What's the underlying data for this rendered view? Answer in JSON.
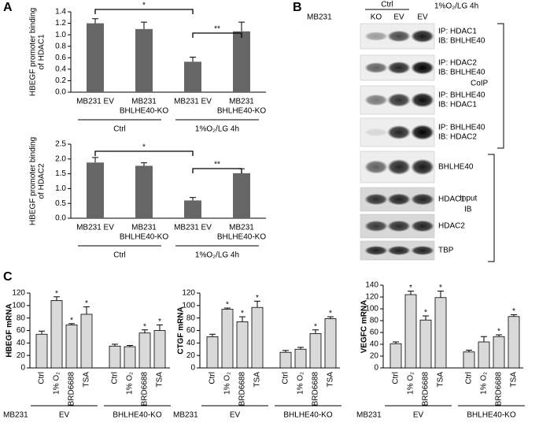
{
  "panels": [
    "A",
    "B",
    "C"
  ],
  "chart_data": [
    {
      "type": "bar",
      "ylabel": [
        "HBEGF promoter binding",
        "of HDAC1"
      ],
      "categories": [
        [
          "MB231 EV"
        ],
        [
          "MB231",
          "BHLHE40-KO"
        ],
        [
          "MB231 EV"
        ],
        [
          "MB231",
          "BHLHE40-KO"
        ]
      ],
      "values": [
        1.2,
        1.1,
        0.53,
        1.06
      ],
      "errors": [
        0.08,
        0.12,
        0.08,
        0.16
      ],
      "color": "#666666",
      "ylim": [
        0,
        1.4
      ],
      "yticks": [
        {
          "value": 0,
          "label": "0.0"
        },
        0.2,
        0.4,
        0.6,
        0.8,
        {
          "value": 1,
          "label": "1.0"
        },
        1.2,
        1.4
      ],
      "groups": [
        {
          "label": "Ctrl",
          "from": 0,
          "to": 1
        },
        {
          "label": "1%O₂/LG 4h",
          "from": 2,
          "to": 3
        }
      ],
      "brackets": [
        {
          "from": 0,
          "to": 2,
          "label": "*"
        },
        {
          "from": 2,
          "to": 3,
          "label": "**"
        }
      ]
    },
    {
      "type": "bar",
      "ylabel": [
        "HBEGF promoter binding",
        "of HDAC2"
      ],
      "categories": [
        [
          "MB231 EV"
        ],
        [
          "MB231",
          "BHLHE40-KO"
        ],
        [
          "MB231 EV"
        ],
        [
          "MB231",
          "BHLHE40-KO"
        ]
      ],
      "values": [
        1.88,
        1.77,
        0.6,
        1.52
      ],
      "errors": [
        0.17,
        0.1,
        0.1,
        0.15
      ],
      "color": "#666666",
      "ylim": [
        0,
        2.5
      ],
      "yticks": [
        {
          "value": 0,
          "label": "0.0"
        },
        0.5,
        {
          "value": 1,
          "label": "1.0"
        },
        1.5,
        {
          "value": 2,
          "label": "2.0"
        },
        2.5
      ],
      "groups": [
        {
          "label": "Ctrl",
          "from": 0,
          "to": 1
        },
        {
          "label": "1%O₂/LG 4h",
          "from": 2,
          "to": 3
        }
      ],
      "brackets": [
        {
          "from": 0,
          "to": 2,
          "label": "*"
        },
        {
          "from": 2,
          "to": 3,
          "label": "**"
        }
      ]
    },
    {
      "type": "bar",
      "ylabel": [
        "HBEGF mRNA"
      ],
      "categories": [
        [
          "Ctrl"
        ],
        [
          "1% O₂"
        ],
        [
          "BRD6688"
        ],
        [
          "TSA"
        ],
        [
          "Ctrl"
        ],
        [
          "1% O₂"
        ],
        [
          "BRD6688"
        ],
        [
          "TSA"
        ]
      ],
      "values": [
        54,
        108,
        69,
        86,
        35,
        34,
        56,
        60
      ],
      "errors": [
        5,
        6,
        2,
        12,
        3,
        2,
        5,
        9
      ],
      "color": "#d9d9d9",
      "significance": [
        null,
        "*",
        "*",
        "*",
        null,
        null,
        "*",
        "*"
      ],
      "ylim": [
        0,
        120
      ],
      "yticks": [
        0,
        20,
        40,
        60,
        80,
        100,
        120
      ],
      "group_prefix": "MB231",
      "groups": [
        {
          "label": "EV",
          "from": 0,
          "to": 3
        },
        {
          "label": "BHLHE40-KO",
          "from": 4,
          "to": 7
        }
      ]
    },
    {
      "type": "bar",
      "ylabel": [
        "CTGF mRNA"
      ],
      "categories": [
        [
          "Ctrl"
        ],
        [
          "1% O₂"
        ],
        [
          "BRD6688"
        ],
        [
          "TSA"
        ],
        [
          "Ctrl"
        ],
        [
          "1% O₂"
        ],
        [
          "BRD6688"
        ],
        [
          "TSA"
        ]
      ],
      "values": [
        50,
        94,
        74,
        97,
        25,
        30,
        55,
        79
      ],
      "errors": [
        4,
        2,
        8,
        10,
        3,
        3,
        6,
        3
      ],
      "color": "#d9d9d9",
      "significance": [
        null,
        "*",
        "*",
        "*",
        null,
        null,
        "*",
        "*"
      ],
      "ylim": [
        0,
        120
      ],
      "yticks": [
        0,
        20,
        40,
        60,
        80,
        100,
        120
      ],
      "group_prefix": "MB231",
      "groups": [
        {
          "label": "EV",
          "from": 0,
          "to": 3
        },
        {
          "label": "BHLHE40-KO",
          "from": 4,
          "to": 7
        }
      ]
    },
    {
      "type": "bar",
      "ylabel": [
        "VEGFC mRNA"
      ],
      "categories": [
        [
          "Ctrl"
        ],
        [
          "1% O₂"
        ],
        [
          "BRD6688"
        ],
        [
          "TSA"
        ],
        [
          "Ctrl"
        ],
        [
          "1% O₂"
        ],
        [
          "BRD6688"
        ],
        [
          "TSA"
        ]
      ],
      "values": [
        41,
        124,
        81,
        119,
        27,
        44,
        53,
        87
      ],
      "errors": [
        3,
        6,
        7,
        11,
        3,
        9,
        3,
        3
      ],
      "color": "#d9d9d9",
      "significance": [
        null,
        "*",
        "*",
        "*",
        null,
        null,
        "*",
        "*"
      ],
      "ylim": [
        0,
        140
      ],
      "yticks": [
        0,
        20,
        40,
        60,
        80,
        100,
        120,
        140
      ],
      "group_prefix": "MB231",
      "groups": [
        {
          "label": "EV",
          "from": 0,
          "to": 3
        },
        {
          "label": "BHLHE40-KO",
          "from": 4,
          "to": 7
        }
      ]
    }
  ],
  "blot": {
    "cell_line": "MB231",
    "lanes": [
      "KO",
      "EV",
      "EV"
    ],
    "ctrl": "Ctrl",
    "treatment": "1%O₂/LG 4h",
    "rows": [
      [
        "IP: HDAC1",
        "IB: BHLHE40"
      ],
      [
        "IP: HDAC2",
        "IB: BHLHE40"
      ],
      [
        "IP: BHLHE40",
        "IB: HDAC1"
      ],
      [
        "IP: BHLHE40",
        "IB: HDAC2"
      ],
      [
        "BHLHE40"
      ],
      [
        "HDAC1"
      ],
      [
        "HDAC2"
      ],
      [
        "TBP"
      ]
    ],
    "coip": "CoIP",
    "input": [
      "Input",
      "IB"
    ]
  }
}
